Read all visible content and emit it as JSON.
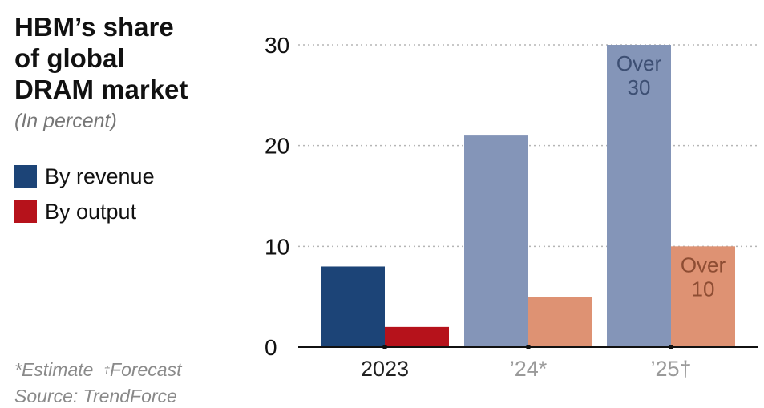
{
  "title": "HBM’s share\nof global\nDRAM market",
  "subtitle": "(In percent)",
  "legend": [
    {
      "label": "By revenue",
      "color": "#1c4477"
    },
    {
      "label": "By output",
      "color": "#b6121b"
    }
  ],
  "footnote": {
    "estimate_mark": "*",
    "estimate_text": "Estimate",
    "forecast_mark": "†",
    "forecast_text": "Forecast",
    "source": "Source: TrendForce"
  },
  "chart_data": {
    "type": "bar",
    "categories": [
      "2023",
      "’24*",
      "’25†"
    ],
    "series": [
      {
        "name": "By revenue",
        "values": [
          8,
          21,
          30
        ],
        "colors": [
          "#1c4477",
          "#8495b8",
          "#8495b8"
        ]
      },
      {
        "name": "By output",
        "values": [
          2,
          5,
          10
        ],
        "colors": [
          "#b6121b",
          "#de9273",
          "#de9273"
        ]
      }
    ],
    "category_label_colors": [
      "#222222",
      "#9a9a9a",
      "#9a9a9a"
    ],
    "annotations": [
      {
        "category": 2,
        "series": 0,
        "lines": [
          "Over",
          "30"
        ],
        "color": "#3d4f73"
      },
      {
        "category": 2,
        "series": 1,
        "lines": [
          "Over",
          "10"
        ],
        "color": "#8e4d33"
      }
    ],
    "ylim": [
      0,
      30
    ],
    "yticks": [
      0,
      10,
      20,
      30
    ],
    "xlabel": "",
    "ylabel": "",
    "grid": true
  }
}
